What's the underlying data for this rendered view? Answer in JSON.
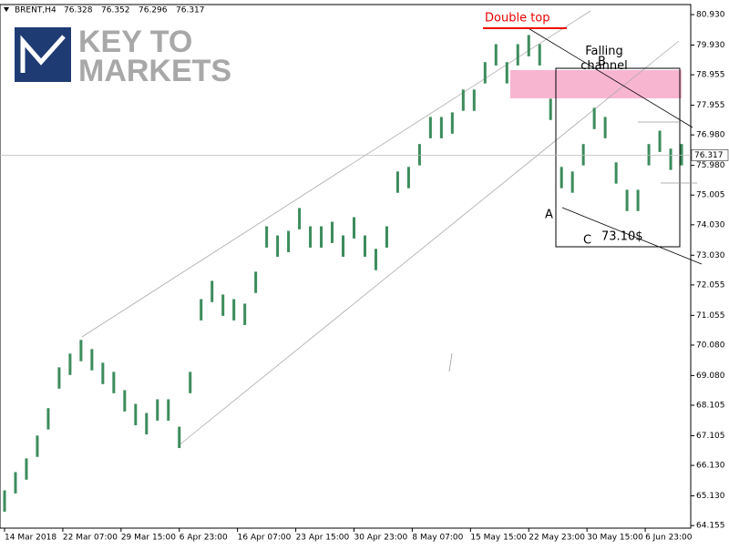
{
  "chart_data": {
    "type": "range-bar",
    "symbol": "BRENT,H4",
    "header_values": [
      76.328,
      76.352,
      76.296,
      76.317
    ],
    "logo_text": [
      "KEY TO",
      "MARKETS"
    ],
    "annotations": [
      "Double top",
      "Falling channel",
      "A",
      "B",
      "C",
      "73.10$"
    ],
    "current_price": 76.317,
    "ylim": [
      64.07,
      81.26
    ],
    "yticks": [
      {
        "value": 80.93,
        "label": "80.930"
      },
      {
        "value": 79.93,
        "label": "79.930"
      },
      {
        "value": 78.955,
        "label": "78.955"
      },
      {
        "value": 77.955,
        "label": "77.955"
      },
      {
        "value": 76.98,
        "label": "76.980"
      },
      {
        "value": 75.98,
        "label": "75.980"
      },
      {
        "value": 75.005,
        "label": "75.005"
      },
      {
        "value": 74.03,
        "label": "74.030"
      },
      {
        "value": 73.03,
        "label": "73.030"
      },
      {
        "value": 72.055,
        "label": "72.055"
      },
      {
        "value": 71.055,
        "label": "71.055"
      },
      {
        "value": 70.08,
        "label": "70.080"
      },
      {
        "value": 69.08,
        "label": "69.080"
      },
      {
        "value": 68.105,
        "label": "68.105"
      },
      {
        "value": 67.105,
        "label": "67.105"
      },
      {
        "value": 66.13,
        "label": "66.130"
      },
      {
        "value": 65.13,
        "label": "65.130"
      },
      {
        "value": 64.155,
        "label": "64.155"
      }
    ],
    "xlim": [
      0,
      377
    ],
    "xticks": [
      {
        "value": 0,
        "label": "14 Mar 2018"
      },
      {
        "value": 32,
        "label": "22 Mar 07:00"
      },
      {
        "value": 64,
        "label": "29 Mar 15:00"
      },
      {
        "value": 96,
        "label": "6 Apr 23:00"
      },
      {
        "value": 128,
        "label": "16 Apr 07:00"
      },
      {
        "value": 160,
        "label": "23 Apr 15:00"
      },
      {
        "value": 192,
        "label": "30 Apr 23:00"
      },
      {
        "value": 224,
        "label": "8 May 07:00"
      },
      {
        "value": 256,
        "label": "15 May 15:00"
      },
      {
        "value": 288,
        "label": "22 May 23:00"
      },
      {
        "value": 320,
        "label": "30 May 15:00"
      },
      {
        "value": 352,
        "label": "6 Jun 23:00"
      }
    ],
    "color": "#3c8c5c",
    "x": [
      0,
      6,
      12,
      18,
      24,
      30,
      36,
      42,
      48,
      54,
      60,
      66,
      72,
      78,
      84,
      90,
      96,
      102,
      108,
      114,
      120,
      126,
      132,
      138,
      144,
      150,
      156,
      162,
      168,
      174,
      180,
      186,
      192,
      198,
      204,
      210,
      216,
      222,
      228,
      234,
      240,
      246,
      252,
      258,
      264,
      270,
      276,
      282,
      288,
      294,
      300,
      306,
      312,
      318,
      324,
      330,
      336,
      342,
      348,
      354,
      360,
      366,
      372
    ],
    "high": [
      65.31,
      65.91,
      66.36,
      67.11,
      68.01,
      69.35,
      69.8,
      70.25,
      69.95,
      69.5,
      69.2,
      68.6,
      68.15,
      67.85,
      68.3,
      68.3,
      67.4,
      69.2,
      71.59,
      72.19,
      71.74,
      71.59,
      71.44,
      72.49,
      73.98,
      73.68,
      73.83,
      74.58,
      73.98,
      73.98,
      74.13,
      73.68,
      74.28,
      73.68,
      73.24,
      73.98,
      75.78,
      75.93,
      76.68,
      77.57,
      77.57,
      77.72,
      78.47,
      78.47,
      79.37,
      79.96,
      79.37,
      79.96,
      80.26,
      79.96,
      78.17,
      75.93,
      75.78,
      76.68,
      77.87,
      77.57,
      76.08,
      75.18,
      75.18,
      76.68,
      77.12,
      76.53,
      76.68
    ],
    "low": [
      64.61,
      65.21,
      65.66,
      66.41,
      67.31,
      68.65,
      69.1,
      69.55,
      69.25,
      68.8,
      68.5,
      67.9,
      67.45,
      67.15,
      67.6,
      67.6,
      66.7,
      68.5,
      70.89,
      71.49,
      71.04,
      70.89,
      70.74,
      71.79,
      73.28,
      72.98,
      73.13,
      73.88,
      73.28,
      73.28,
      73.43,
      72.98,
      73.58,
      72.98,
      72.54,
      73.28,
      75.08,
      75.23,
      75.98,
      76.87,
      76.87,
      77.02,
      77.77,
      77.77,
      78.67,
      79.26,
      78.67,
      79.26,
      79.56,
      79.26,
      77.47,
      75.23,
      75.08,
      75.98,
      77.17,
      76.87,
      75.38,
      74.48,
      74.48,
      75.98,
      76.42,
      75.83,
      75.98
    ]
  }
}
